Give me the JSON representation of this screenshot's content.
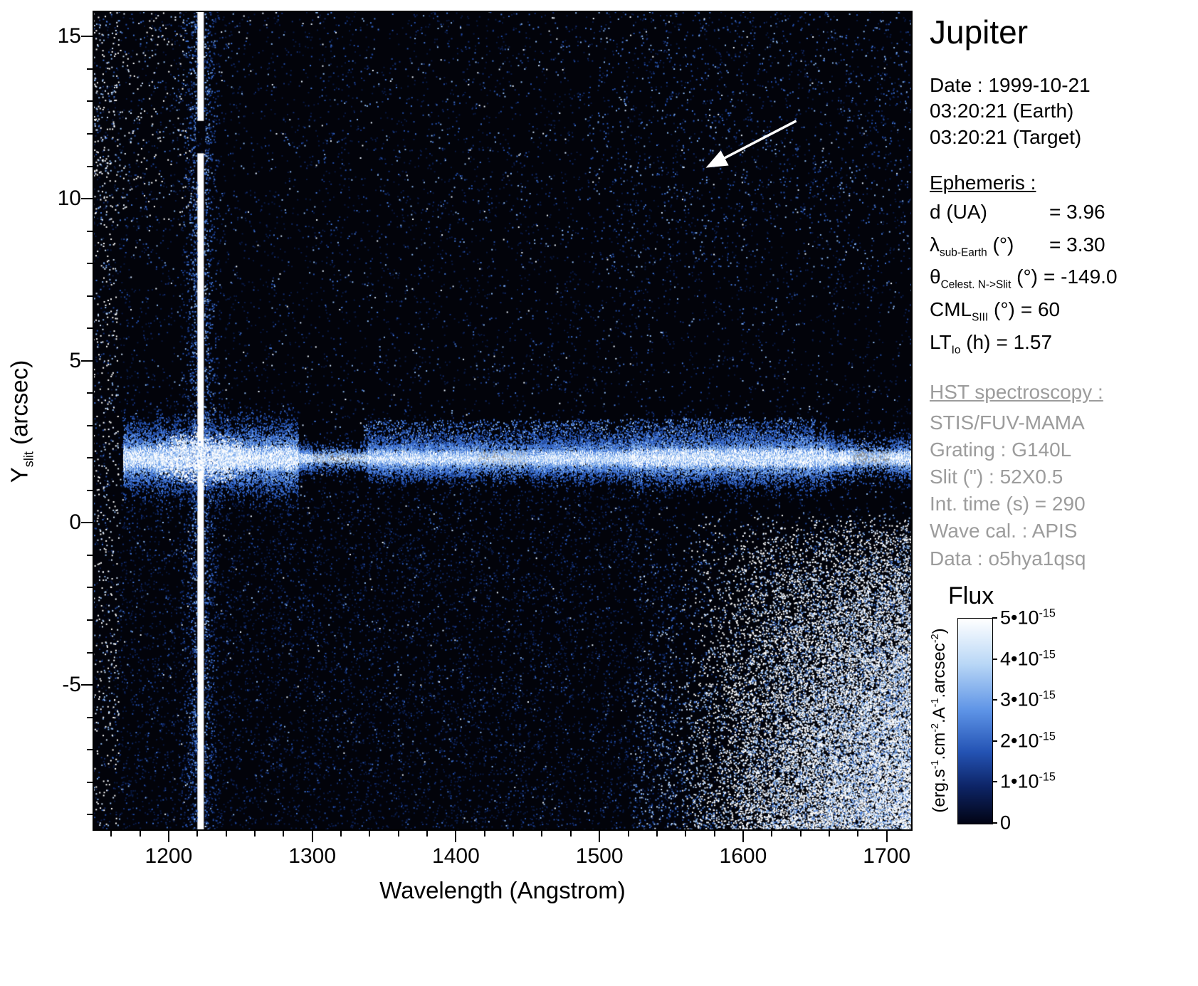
{
  "title": "Jupiter",
  "observation": {
    "date": "Date : 1999-10-21",
    "time_earth": "03:20:21 (Earth)",
    "time_target": "03:20:21 (Target)"
  },
  "ephemeris": {
    "header": "Ephemeris :",
    "rows": [
      {
        "pre": "d",
        "sub": "",
        "post": " (UA)",
        "value": "= 3.96"
      },
      {
        "pre": "λ",
        "sub": "sub-Earth",
        "post": " (°)",
        "value": "= 3.30"
      },
      {
        "pre": "θ",
        "sub": "Celest. N->Slit",
        "post": " (°)",
        "value": "= -149.0"
      },
      {
        "pre": "CML",
        "sub": "SIII",
        "post": " (°)",
        "value": "= 60"
      },
      {
        "pre": "LT",
        "sub": "Io",
        "post": " (h)",
        "value": "= 1.57"
      }
    ]
  },
  "hst": {
    "header": "HST spectroscopy :",
    "lines": [
      "STIS/FUV-MAMA",
      "Grating : G140L",
      "Slit (\") : 52X0.5",
      "Int. time (s) = 290",
      "Wave cal. : APIS",
      "Data : o5hya1qsq"
    ]
  },
  "axes": {
    "x": {
      "label": "Wavelength (Angstrom)",
      "tick_labels": [
        "1200",
        "1300",
        "1400",
        "1500",
        "1600",
        "1700"
      ],
      "minor_start": 1160,
      "minor_step": 20
    },
    "y": {
      "label_pre": "Y",
      "label_sub": "slit",
      "label_post": " (arcsec)",
      "tick_labels": [
        "-5",
        "0",
        "5",
        "10",
        "15"
      ]
    }
  },
  "colorbar": {
    "title": "Flux",
    "tick_labels": [
      {
        "mant": "5•10",
        "exp": "-15"
      },
      {
        "mant": "4•10",
        "exp": "-15"
      },
      {
        "mant": "3•10",
        "exp": "-15"
      },
      {
        "mant": "2•10",
        "exp": "-15"
      },
      {
        "mant": "1•10",
        "exp": "-15"
      },
      {
        "mant": "0",
        "exp": ""
      }
    ],
    "unit_parts": [
      [
        "(erg.s",
        "-1"
      ],
      [
        ".cm",
        "-2"
      ],
      [
        ".A",
        "-1"
      ],
      [
        ".arcsec",
        "-2"
      ],
      [
        ")",
        ""
      ]
    ],
    "gradient": [
      "#ffffff",
      "#b9d7f6",
      "#5d93e6",
      "#2453b4",
      "#0d2466",
      "#020414"
    ],
    "gradient_stops": [
      0,
      22,
      45,
      65,
      82,
      100
    ]
  },
  "chart_data": {
    "type": "heatmap",
    "title": "Jupiter — HST STIS/FUV-MAMA spectral image",
    "xlabel": "Wavelength (Angstrom)",
    "ylabel": "Y slit (arcsec)",
    "xlim": [
      1147,
      1718
    ],
    "ylim": [
      -9.5,
      15.8
    ],
    "x_ticks": [
      1200,
      1300,
      1400,
      1500,
      1600,
      1700
    ],
    "y_ticks": [
      -5,
      0,
      5,
      10,
      15
    ],
    "flux_range": [
      0,
      5e-15
    ],
    "flux_unit": "erg.s-1.cm-2.A-1.arcsec-2",
    "colormap": "black-blue-white",
    "features": [
      {
        "name": "geocoronal-lyman-alpha-stripe",
        "type": "vertical-line",
        "wavelength": 1222,
        "y_extent": [
          -9.5,
          15.8
        ],
        "gap_y": [
          11.4,
          12.4
        ],
        "flux": "saturated >= 5e-15"
      },
      {
        "name": "jupiter-dayglow-spectrum-band",
        "type": "horizontal-band",
        "y_center": 2.0,
        "wavelength_extent": [
          1168,
          1718
        ],
        "flux": "saturated >= 5e-15",
        "dips_at_wavelengths": [
          1315,
          1430,
          1690
        ],
        "broadened_ranges": [
          [
            1168,
            1290
          ],
          [
            1520,
            1660
          ]
        ]
      },
      {
        "name": "detector-red-leak-glow",
        "type": "region",
        "wavelength_extent": [
          1553,
          1718
        ],
        "y_extent": [
          -9.5,
          0.3
        ],
        "description": "dense bright speckle increasing toward bottom-right corner"
      },
      {
        "name": "background",
        "type": "noise",
        "description": "sparse blue speckle on black"
      },
      {
        "name": "left-edge-hot-column",
        "type": "region",
        "wavelength_extent": [
          1147,
          1165
        ],
        "y_extent": [
          -9.5,
          15.8
        ],
        "description": "sparse white speckle column at detector edge"
      }
    ],
    "annotation_arrow": {
      "from": [
        1637,
        12.4
      ],
      "to": [
        1576,
        11.0
      ],
      "color": "#ffffff"
    }
  }
}
